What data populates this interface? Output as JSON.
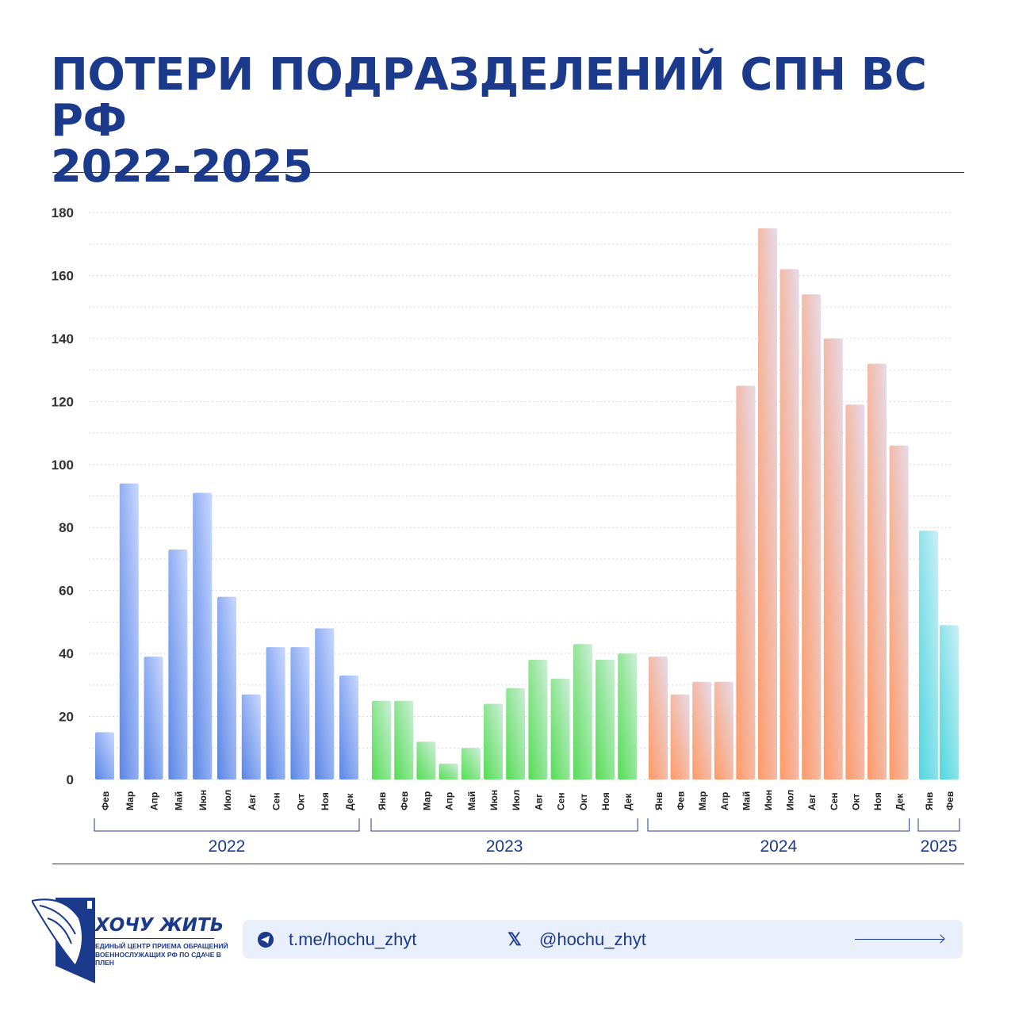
{
  "header": {
    "title_line1": "ПОТЕРИ ПОДРАЗДЕЛЕНИЙ СПН ВС РФ",
    "title_line2": "2022-2025"
  },
  "chart_data": {
    "type": "bar",
    "title": "ПОТЕРИ ПОДРАЗДЕЛЕНИЙ СПН ВС РФ 2022-2025",
    "ylim": [
      0,
      180
    ],
    "yticks": [
      0,
      20,
      40,
      60,
      80,
      100,
      120,
      140,
      160,
      180
    ],
    "grid": true,
    "groups": [
      {
        "year": "2022",
        "color": "#5b86e5",
        "color_light": "#c9d8ff",
        "categories": [
          "Фев",
          "Мар",
          "Апр",
          "Май",
          "Июн",
          "Июл",
          "Авг",
          "Сен",
          "Окт",
          "Ноя",
          "Дек"
        ],
        "values": [
          15,
          94,
          39,
          73,
          91,
          58,
          27,
          42,
          42,
          48,
          33
        ]
      },
      {
        "year": "2023",
        "color": "#55dd55",
        "color_light": "#cdeed8",
        "categories": [
          "Янв",
          "Фев",
          "Мар",
          "Апр",
          "Май",
          "Июн",
          "Июл",
          "Авг",
          "Сен",
          "Окт",
          "Ноя",
          "Дек"
        ],
        "values": [
          25,
          25,
          12,
          5,
          10,
          24,
          29,
          38,
          32,
          43,
          38,
          40
        ]
      },
      {
        "year": "2024",
        "color": "#ff9a66",
        "color_light": "#e6dbe9",
        "categories": [
          "Янв",
          "Фев",
          "Мар",
          "Апр",
          "Май",
          "Июн",
          "Июл",
          "Авг",
          "Сен",
          "Окт",
          "Ноя",
          "Дек"
        ],
        "values": [
          39,
          27,
          31,
          31,
          125,
          175,
          162,
          154,
          140,
          119,
          132,
          106
        ]
      },
      {
        "year": "2025",
        "color": "#4ed8de",
        "color_light": "#cdeef6",
        "categories": [
          "Янв",
          "Фев"
        ],
        "values": [
          79,
          49
        ]
      }
    ]
  },
  "footer": {
    "logo_name": "ХОЧУ ЖИТЬ",
    "logo_sub": "ЕДИНЫЙ ЦЕНТР ПРИЕМА ОБРАЩЕНИЙ ВОЕННОСЛУЖАЩИХ РФ ПО СДАЧЕ В ПЛЕН",
    "telegram": "t.me/hochu_zhyt",
    "x": "@hochu_zhyt",
    "icons": [
      "telegram-icon",
      "x-icon",
      "arrow-right-icon"
    ]
  }
}
